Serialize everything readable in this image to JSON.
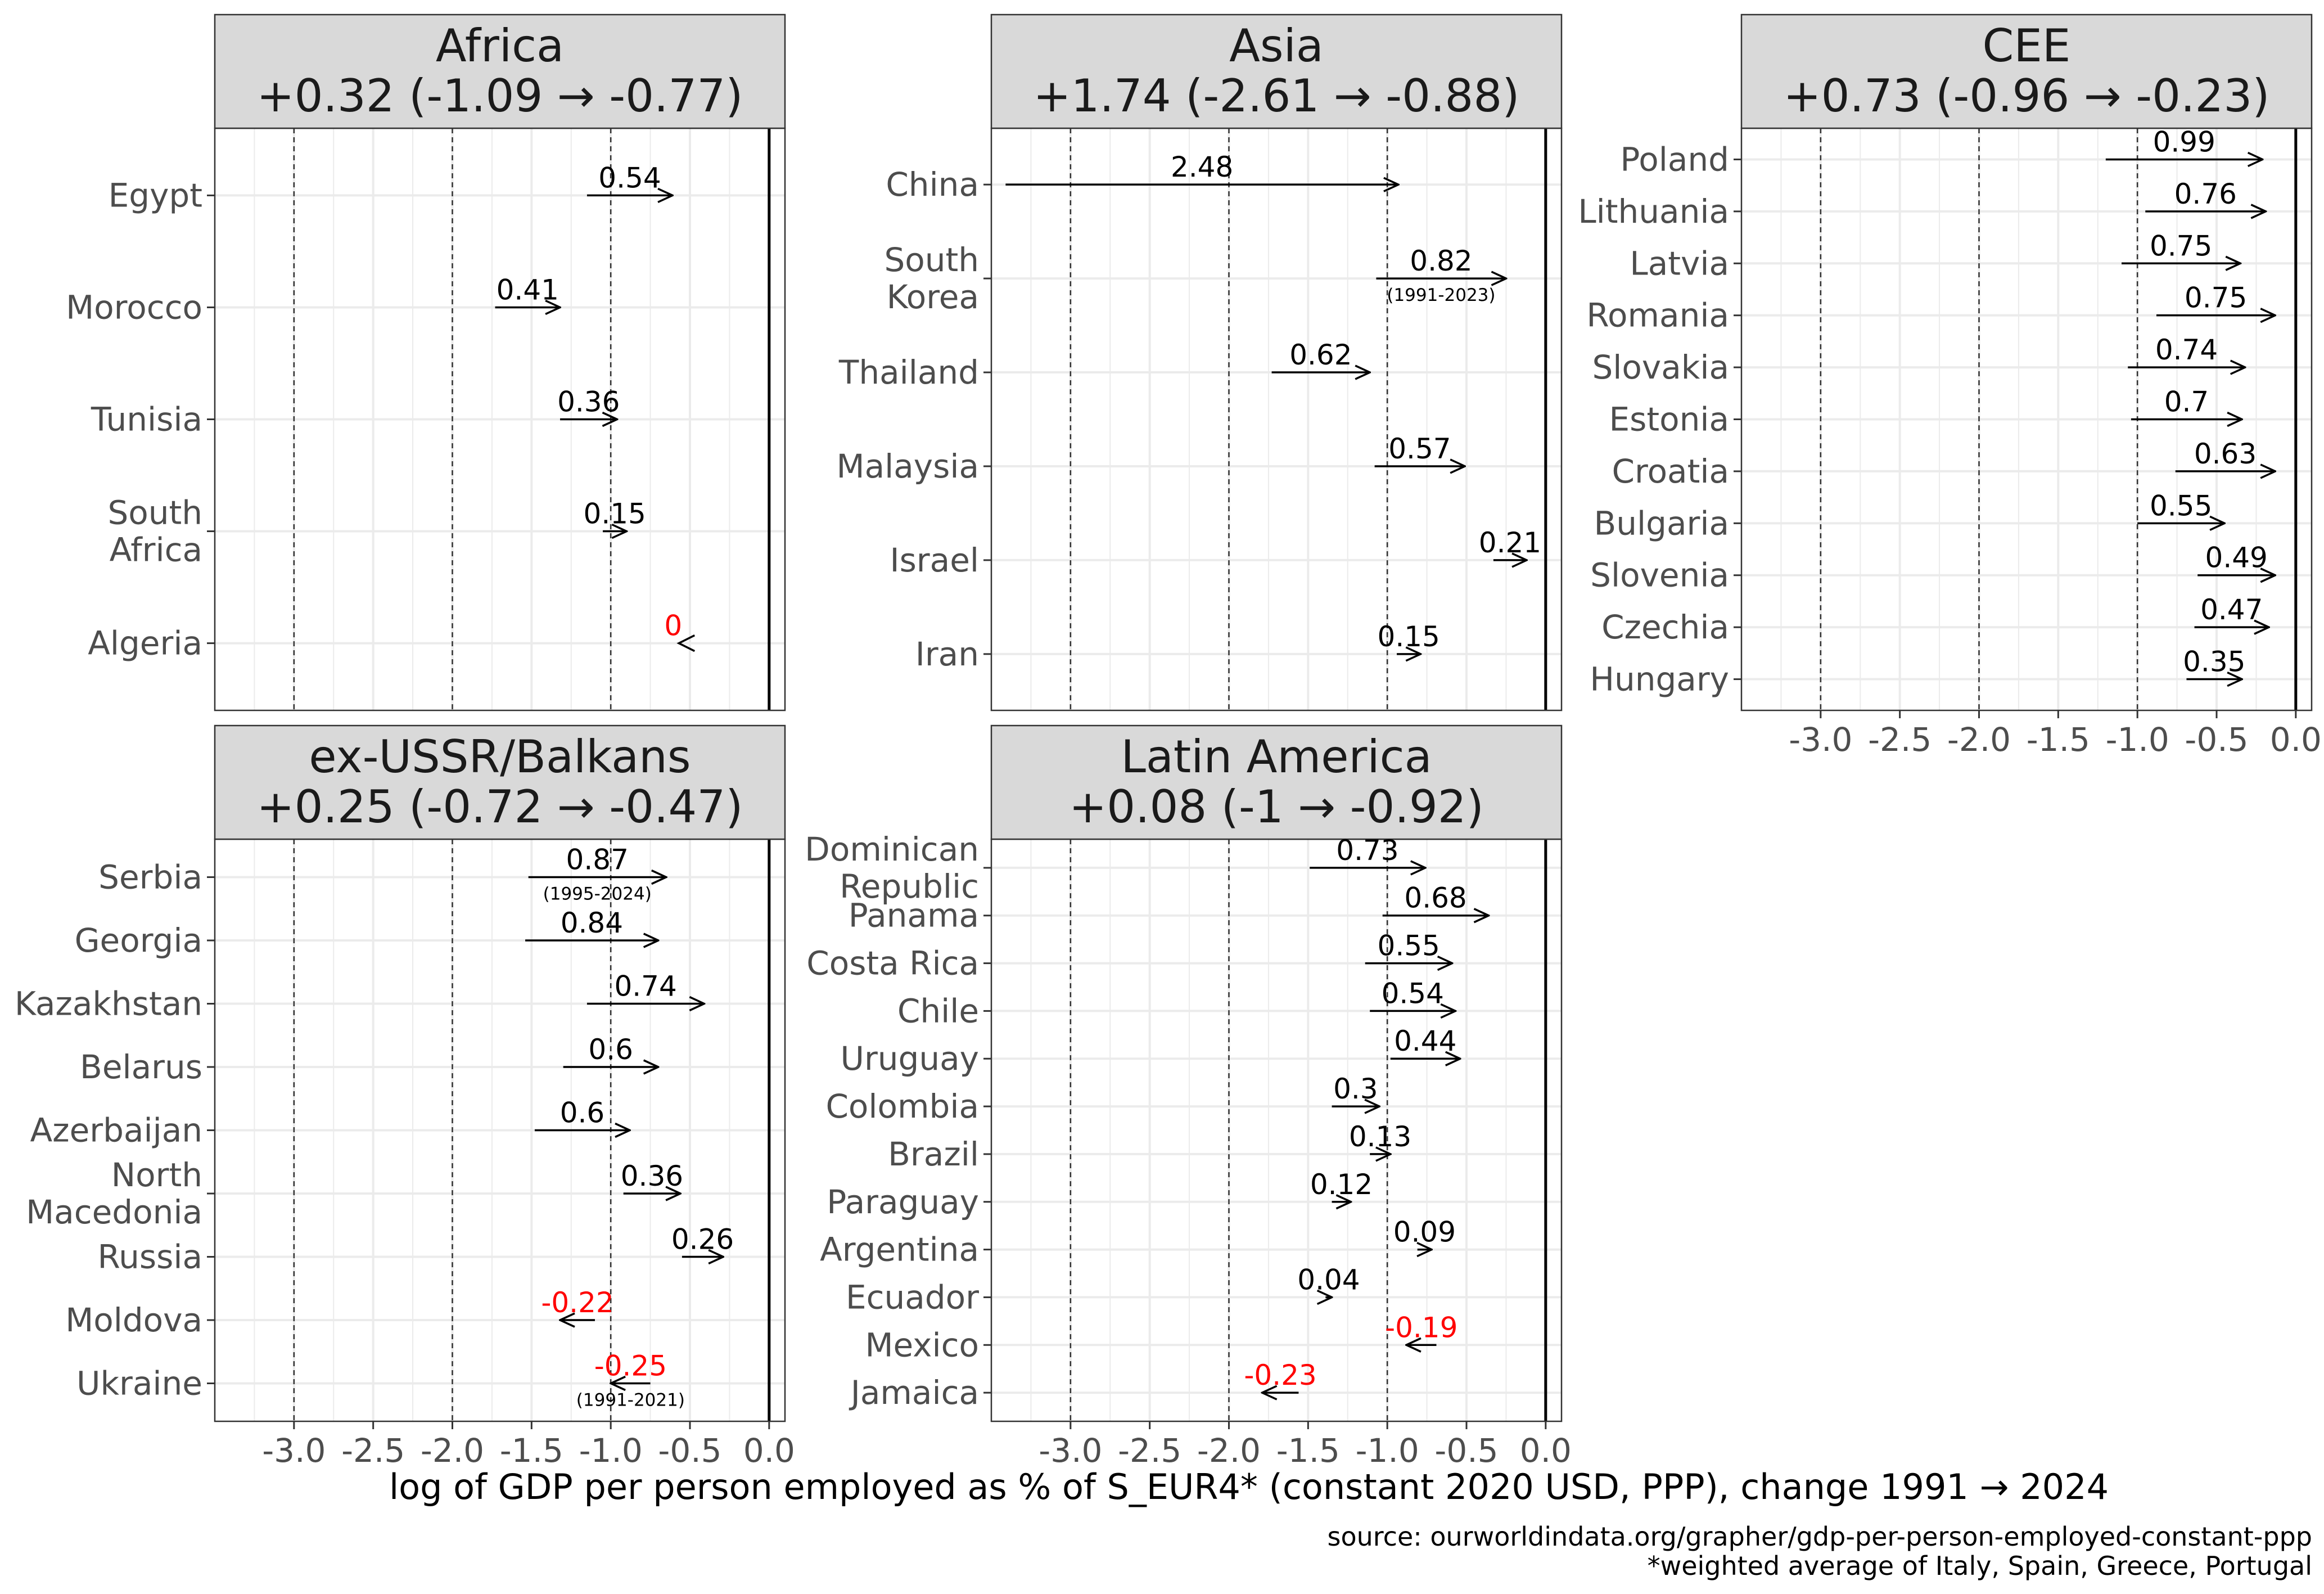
{
  "x_axis_label": "log of GDP per person employed as % of S_EUR4* (constant 2020 USD, PPP), change 1991 → 2024",
  "source_note": "source: ourworldindata.org/grapher/gdp-per-person-employed-constant-ppp",
  "footnote": "*weighted average of Italy, Spain, Greece, Portugal",
  "colors": {
    "positive": "#000000",
    "negative": "#ff0000",
    "strip": "#d9d9d9",
    "grid": "#ebebeb"
  },
  "chart_data": [
    {
      "type": "arrow",
      "title": "Africa",
      "subtitle": "+0.32 (-1.09 → -0.77)",
      "xlim": [
        -3.5,
        0.1
      ],
      "xticks": [
        -3.0,
        -2.5,
        -2.0,
        -1.5,
        -1.0,
        -0.5,
        0.0
      ],
      "xtick_labels": [
        "-3.0",
        "-2.5",
        "-2.0",
        "-1.5",
        "-1.0",
        "-0.5",
        "0.0"
      ],
      "show_x_axis": false,
      "reference_lines": [
        -3.0,
        -2.0,
        -1.0
      ],
      "zero_line": 0,
      "rows": [
        {
          "country": "Egypt",
          "start": -1.15,
          "end": -0.61,
          "change": "0.54",
          "period": ""
        },
        {
          "country": "Morocco",
          "start": -1.73,
          "end": -1.32,
          "change": "0.41",
          "period": ""
        },
        {
          "country": "Tunisia",
          "start": -1.32,
          "end": -0.96,
          "change": "0.36",
          "period": ""
        },
        {
          "country": "South\nAfrica",
          "start": -1.05,
          "end": -0.9,
          "change": "0.15",
          "period": ""
        },
        {
          "country": "Algeria",
          "start": -0.57,
          "end": -0.57,
          "change": "0",
          "period": ""
        }
      ]
    },
    {
      "type": "arrow",
      "title": "Asia",
      "subtitle": "+1.74 (-2.61 → -0.88)",
      "xlim": [
        -3.5,
        0.1
      ],
      "xticks": [
        -3.0,
        -2.5,
        -2.0,
        -1.5,
        -1.0,
        -0.5,
        0.0
      ],
      "xtick_labels": [
        "-3.0",
        "-2.5",
        "-2.0",
        "-1.5",
        "-1.0",
        "-0.5",
        "0.0"
      ],
      "show_x_axis": false,
      "reference_lines": [
        -3.0,
        -2.0,
        -1.0
      ],
      "zero_line": 0,
      "rows": [
        {
          "country": "China",
          "start": -3.41,
          "end": -0.93,
          "change": "2.48",
          "period": ""
        },
        {
          "country": "South\nKorea",
          "start": -1.07,
          "end": -0.25,
          "change": "0.82",
          "period": "(1991-2023)"
        },
        {
          "country": "Thailand",
          "start": -1.73,
          "end": -1.11,
          "change": "0.62",
          "period": ""
        },
        {
          "country": "Malaysia",
          "start": -1.08,
          "end": -0.51,
          "change": "0.57",
          "period": ""
        },
        {
          "country": "Israel",
          "start": -0.33,
          "end": -0.12,
          "change": "0.21",
          "period": ""
        },
        {
          "country": "Iran",
          "start": -0.94,
          "end": -0.79,
          "change": "0.15",
          "period": ""
        }
      ]
    },
    {
      "type": "arrow",
      "title": "CEE",
      "subtitle": "+0.73 (-0.96 → -0.23)",
      "xlim": [
        -3.5,
        0.1
      ],
      "xticks": [
        -3.0,
        -2.5,
        -2.0,
        -1.5,
        -1.0,
        -0.5,
        0.0
      ],
      "xtick_labels": [
        "-3.0",
        "-2.5",
        "-2.0",
        "-1.5",
        "-1.0",
        "-0.5",
        "0.0"
      ],
      "show_x_axis": true,
      "reference_lines": [
        -3.0,
        -2.0,
        -1.0
      ],
      "zero_line": 0,
      "rows": [
        {
          "country": "Poland",
          "start": -1.2,
          "end": -0.21,
          "change": "0.99",
          "period": ""
        },
        {
          "country": "Lithuania",
          "start": -0.95,
          "end": -0.19,
          "change": "0.76",
          "period": ""
        },
        {
          "country": "Latvia",
          "start": -1.1,
          "end": -0.35,
          "change": "0.75",
          "period": ""
        },
        {
          "country": "Romania",
          "start": -0.88,
          "end": -0.13,
          "change": "0.75",
          "period": ""
        },
        {
          "country": "Slovakia",
          "start": -1.06,
          "end": -0.32,
          "change": "0.74",
          "period": ""
        },
        {
          "country": "Estonia",
          "start": -1.04,
          "end": -0.34,
          "change": "0.7",
          "period": ""
        },
        {
          "country": "Croatia",
          "start": -0.76,
          "end": -0.13,
          "change": "0.63",
          "period": ""
        },
        {
          "country": "Bulgaria",
          "start": -1.0,
          "end": -0.45,
          "change": "0.55",
          "period": ""
        },
        {
          "country": "Slovenia",
          "start": -0.62,
          "end": -0.13,
          "change": "0.49",
          "period": ""
        },
        {
          "country": "Czechia",
          "start": -0.64,
          "end": -0.17,
          "change": "0.47",
          "period": ""
        },
        {
          "country": "Hungary",
          "start": -0.69,
          "end": -0.34,
          "change": "0.35",
          "period": ""
        }
      ]
    },
    {
      "type": "arrow",
      "title": "ex-USSR/Balkans",
      "subtitle": "+0.25 (-0.72 → -0.47)",
      "xlim": [
        -3.5,
        0.1
      ],
      "xticks": [
        -3.0,
        -2.5,
        -2.0,
        -1.5,
        -1.0,
        -0.5,
        0.0
      ],
      "xtick_labels": [
        "-3.0",
        "-2.5",
        "-2.0",
        "-1.5",
        "-1.0",
        "-0.5",
        "0.0"
      ],
      "show_x_axis": true,
      "reference_lines": [
        -3.0,
        -2.0,
        -1.0
      ],
      "zero_line": 0,
      "rows": [
        {
          "country": "Serbia",
          "start": -1.52,
          "end": -0.65,
          "change": "0.87",
          "period": "(1995-2024)"
        },
        {
          "country": "Georgia",
          "start": -1.54,
          "end": -0.7,
          "change": "0.84",
          "period": ""
        },
        {
          "country": "Kazakhstan",
          "start": -1.15,
          "end": -0.41,
          "change": "0.74",
          "period": ""
        },
        {
          "country": "Belarus",
          "start": -1.3,
          "end": -0.7,
          "change": "0.6",
          "period": ""
        },
        {
          "country": "Azerbaijan",
          "start": -1.48,
          "end": -0.88,
          "change": "0.6",
          "period": ""
        },
        {
          "country": "North\nMacedonia",
          "start": -0.92,
          "end": -0.56,
          "change": "0.36",
          "period": ""
        },
        {
          "country": "Russia",
          "start": -0.55,
          "end": -0.29,
          "change": "0.26",
          "period": ""
        },
        {
          "country": "Moldova",
          "start": -1.1,
          "end": -1.32,
          "change": "-0.22",
          "period": ""
        },
        {
          "country": "Ukraine",
          "start": -0.75,
          "end": -1.0,
          "change": "-0.25",
          "period": "(1991-2021)"
        }
      ]
    },
    {
      "type": "arrow",
      "title": "Latin America",
      "subtitle": "+0.08 (-1 → -0.92)",
      "xlim": [
        -3.5,
        0.1
      ],
      "xticks": [
        -3.0,
        -2.5,
        -2.0,
        -1.5,
        -1.0,
        -0.5,
        0.0
      ],
      "xtick_labels": [
        "-3.0",
        "-2.5",
        "-2.0",
        "-1.5",
        "-1.0",
        "-0.5",
        "0.0"
      ],
      "show_x_axis": true,
      "reference_lines": [
        -3.0,
        -2.0,
        -1.0
      ],
      "zero_line": 0,
      "rows": [
        {
          "country": "Dominican\nRepublic",
          "start": -1.49,
          "end": -0.76,
          "change": "0.73",
          "period": ""
        },
        {
          "country": "Panama",
          "start": -1.03,
          "end": -0.36,
          "change": "0.68",
          "period": ""
        },
        {
          "country": "Costa Rica",
          "start": -1.14,
          "end": -0.59,
          "change": "0.55",
          "period": ""
        },
        {
          "country": "Chile",
          "start": -1.11,
          "end": -0.57,
          "change": "0.54",
          "period": ""
        },
        {
          "country": "Uruguay",
          "start": -0.98,
          "end": -0.54,
          "change": "0.44",
          "period": ""
        },
        {
          "country": "Colombia",
          "start": -1.35,
          "end": -1.05,
          "change": "0.3",
          "period": ""
        },
        {
          "country": "Brazil",
          "start": -1.11,
          "end": -0.98,
          "change": "0.13",
          "period": ""
        },
        {
          "country": "Paraguay",
          "start": -1.35,
          "end": -1.23,
          "change": "0.12",
          "period": ""
        },
        {
          "country": "Argentina",
          "start": -0.81,
          "end": -0.72,
          "change": "0.09",
          "period": ""
        },
        {
          "country": "Ecuador",
          "start": -1.39,
          "end": -1.35,
          "change": "0.04",
          "period": ""
        },
        {
          "country": "Mexico",
          "start": -0.69,
          "end": -0.88,
          "change": "-0.19",
          "period": ""
        },
        {
          "country": "Jamaica",
          "start": -1.56,
          "end": -1.79,
          "change": "-0.23",
          "period": ""
        }
      ]
    }
  ]
}
